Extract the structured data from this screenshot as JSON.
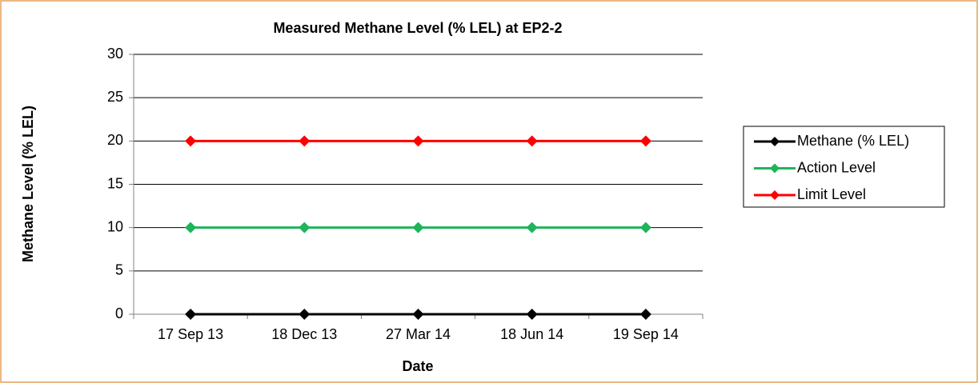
{
  "chart_data": {
    "type": "line",
    "title": "Measured Methane Level (% LEL) at EP2-2",
    "x_label": "Date",
    "y_label": "Methane Level (% LEL)",
    "categories": [
      "17 Sep 13",
      "18 Dec 13",
      "27 Mar 14",
      "18 Jun 14",
      "19 Sep 14"
    ],
    "series": [
      {
        "name": "Methane (% LEL)",
        "color": "#000000",
        "values": [
          0,
          0,
          0,
          0,
          0
        ]
      },
      {
        "name": "Action Level",
        "color": "#1fb35a",
        "values": [
          10,
          10,
          10,
          10,
          10
        ]
      },
      {
        "name": "Limit Level",
        "color": "#ff0000",
        "values": [
          20,
          20,
          20,
          20,
          20
        ]
      }
    ],
    "ylim": [
      0,
      30
    ],
    "yticks": [
      0,
      5,
      10,
      15,
      20,
      25,
      30
    ],
    "grid": true,
    "legend": "right"
  }
}
